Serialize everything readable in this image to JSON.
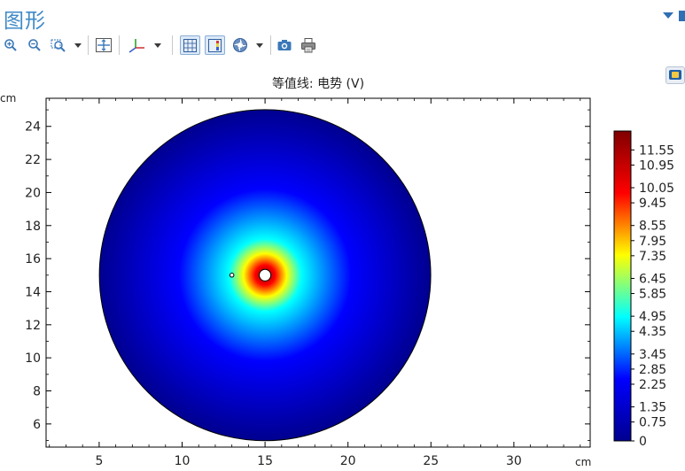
{
  "window": {
    "title": "图形"
  },
  "toolbar": {
    "buttons": [
      {
        "icon": "zoom-in-icon"
      },
      {
        "icon": "zoom-out-icon"
      },
      {
        "icon": "zoom-box-icon"
      },
      {
        "icon": "zoom-extents-icon"
      },
      {
        "icon": "axis-orientation-icon"
      },
      {
        "icon": "show-grid-icon"
      },
      {
        "icon": "show-legend-icon"
      },
      {
        "icon": "scene-light-icon"
      },
      {
        "icon": "image-snapshot-icon"
      },
      {
        "icon": "print-icon"
      }
    ]
  },
  "chart_data": {
    "type": "heatmap",
    "title": "等值线: 电势 (V)",
    "x_unit": "cm",
    "y_unit": "cm",
    "x_ticks": [
      5,
      10,
      15,
      20,
      25,
      30
    ],
    "y_ticks": [
      6,
      8,
      10,
      12,
      14,
      16,
      18,
      20,
      22,
      24
    ],
    "x_range": [
      1.8,
      34.6
    ],
    "y_range": [
      4.6,
      25.7
    ],
    "domain_circle": {
      "center": [
        15,
        15
      ],
      "radius": 10
    },
    "source_point": {
      "center": [
        15,
        15
      ],
      "radius": 0.35
    },
    "probe_point": {
      "center": [
        13,
        15
      ],
      "radius": 0.12
    },
    "colorbar": {
      "min": 0,
      "max": 12.3,
      "labels": [
        "11.55",
        "10.95",
        "10.05",
        "9.45",
        "8.55",
        "7.95",
        "7.35",
        "6.45",
        "5.85",
        "4.95",
        "4.35",
        "3.45",
        "2.85",
        "2.25",
        "1.35",
        "0.75",
        "0"
      ]
    },
    "colormap": [
      "#00008f",
      "#0000ff",
      "#00ffff",
      "#ffff00",
      "#ff0000",
      "#800000"
    ]
  }
}
